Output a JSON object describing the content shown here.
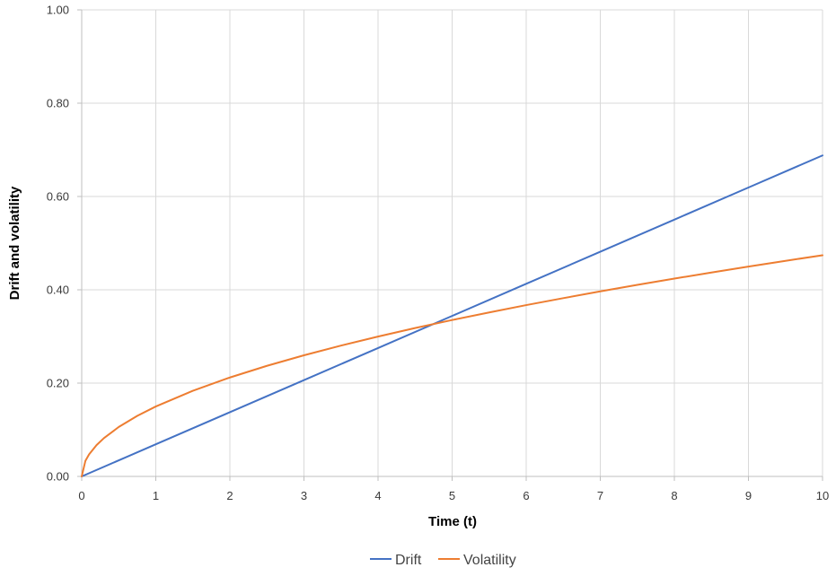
{
  "chart_data": {
    "type": "line",
    "xlabel": "Time (t)",
    "ylabel": "Drift and volatility",
    "xlim": [
      0,
      10
    ],
    "ylim": [
      0,
      1
    ],
    "x_ticks": [
      "0",
      "1",
      "2",
      "3",
      "4",
      "5",
      "6",
      "7",
      "8",
      "9",
      "10"
    ],
    "y_ticks": [
      "0.00",
      "0.20",
      "0.40",
      "0.60",
      "0.80",
      "1.00"
    ],
    "grid": true,
    "legend_position": "bottom",
    "series": [
      {
        "name": "Drift",
        "color": "#4472C4",
        "x": [
          0,
          1,
          2,
          3,
          4,
          5,
          6,
          7,
          8,
          9,
          10
        ],
        "y": [
          0,
          0.0688,
          0.1376,
          0.2064,
          0.2752,
          0.344,
          0.4128,
          0.4816,
          0.5504,
          0.6192,
          0.688
        ]
      },
      {
        "name": "Volatility",
        "color": "#ED7D31",
        "x": [
          0,
          0.05,
          0.1,
          0.2,
          0.3,
          0.5,
          0.75,
          1,
          1.5,
          2,
          2.5,
          3,
          3.5,
          4,
          4.5,
          5,
          5.5,
          6,
          6.5,
          7,
          7.5,
          8,
          8.5,
          9,
          9.5,
          10
        ],
        "y": [
          0,
          0.0335,
          0.0474,
          0.067,
          0.0821,
          0.106,
          0.1298,
          0.1499,
          0.1836,
          0.212,
          0.237,
          0.2596,
          0.2804,
          0.2998,
          0.318,
          0.3352,
          0.3515,
          0.3672,
          0.3821,
          0.3966,
          0.4105,
          0.424,
          0.4371,
          0.4497,
          0.4621,
          0.474
        ]
      }
    ]
  }
}
